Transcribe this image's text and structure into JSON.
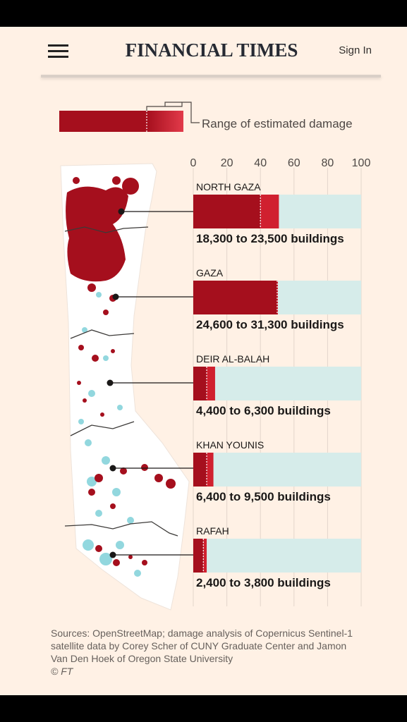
{
  "header": {
    "masthead": "FINANCIAL TIMES",
    "sign_in": "Sign In"
  },
  "legend": {
    "label": "Range of estimated damage"
  },
  "chart_data": {
    "type": "bar",
    "xlim": [
      0,
      100
    ],
    "ticks": [
      0,
      20,
      40,
      60,
      80,
      100
    ],
    "grid": true,
    "categories": [
      "NORTH GAZA",
      "GAZA",
      "DEIR AL-BALAH",
      "KHAN YOUNIS",
      "RAFAH"
    ],
    "series": [
      {
        "values": [
          40,
          50,
          8,
          8,
          6
        ]
      },
      {
        "values": [
          51,
          50,
          13,
          12,
          8
        ]
      }
    ],
    "annotations": [
      "18,300 to 23,500 buildings",
      "24,600 to 31,300 buildings",
      "4,400 to 6,300 buildings",
      "6,400 to 9,500 buildings",
      "2,400 to 3,800 buildings"
    ],
    "colors": {
      "damage": "#a50f1d",
      "track": "#d6ecea",
      "map_base": "#ffffff",
      "map_dots": "#7fd1d9"
    }
  },
  "sources": {
    "text": "Sources: OpenStreetMap; damage analysis of Copernicus Sentinel-1 satellite data by Corey Scher of CUNY Graduate Center and Jamon Van Den Hoek of Oregon State University",
    "copyright": "© FT"
  }
}
